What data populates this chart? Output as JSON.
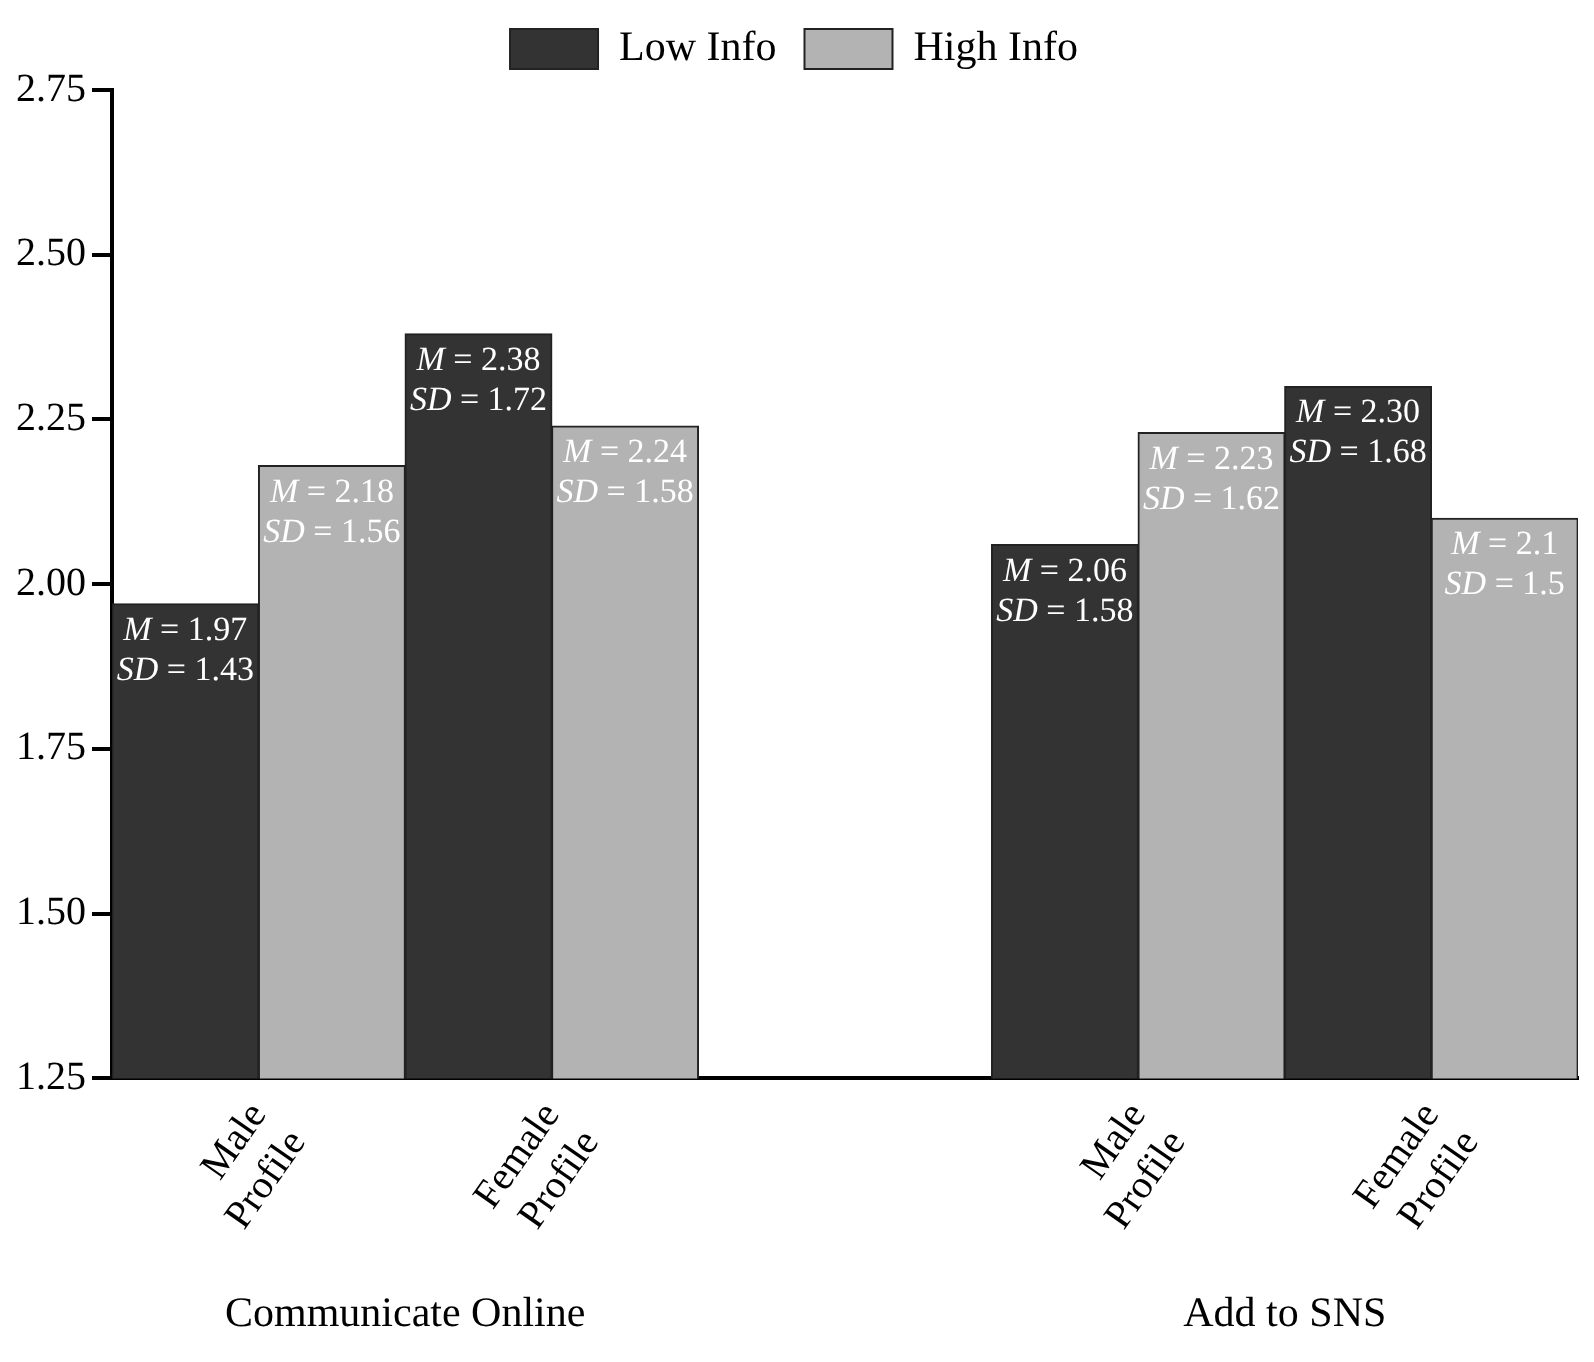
{
  "chart_data": {
    "type": "bar",
    "categories": [
      "Male Profile",
      "Female Profile",
      null,
      "Male Profile",
      "Female Profile"
    ],
    "series": [
      {
        "name": "Low Info",
        "color": "#333333",
        "values": [
          1.97,
          2.38,
          null,
          2.06,
          2.3
        ],
        "value_labels": [
          "M = 1.97\nSD = 1.43",
          "M = 2.38\nSD = 1.72",
          null,
          "M = 2.06\nSD = 1.58",
          "M = 2.30\nSD = 1.68"
        ]
      },
      {
        "name": "High Info",
        "color": "#b3b3b3",
        "values": [
          2.18,
          2.24,
          null,
          2.23,
          2.1
        ],
        "value_labels": [
          "M = 2.18\nSD = 1.56",
          "M = 2.24\nSD = 1.58",
          null,
          "M = 2.23\nSD = 1.62",
          "M = 2.1\nSD = 1.5"
        ]
      }
    ],
    "ylim": [
      1.25,
      2.75
    ],
    "yticks": [
      1.25,
      {
        "value": 1.5,
        "label": "1.50"
      },
      1.75,
      {
        "value": 2,
        "label": "2.00"
      },
      2.25,
      {
        "value": 2.5,
        "label": "2.50"
      },
      2.75
    ],
    "annotations": [
      "Communicate Online",
      "Add to SNS"
    ],
    "legend": "top",
    "grid": false
  }
}
